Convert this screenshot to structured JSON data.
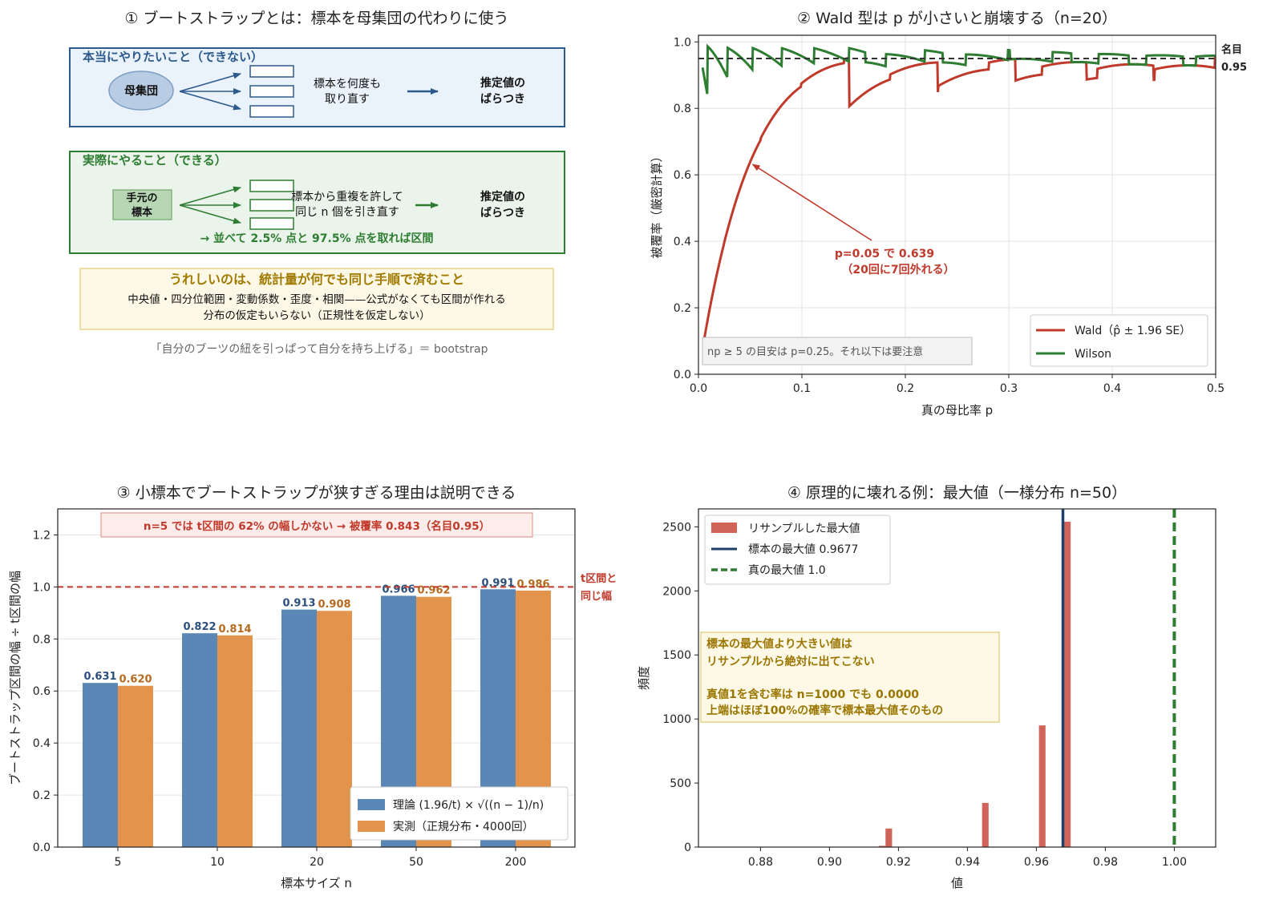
{
  "panel1": {
    "title": "① ブートストラップとは：標本を母集団の代わりに使う",
    "box1": {
      "heading": "本当にやりたいこと（できない）",
      "source": "母集団",
      "middle": [
        "標本を何度も",
        "取り直す"
      ],
      "result": [
        "推定値の",
        "ばらつき"
      ]
    },
    "box2": {
      "heading": "実際にやること（できる）",
      "source": [
        "手元の",
        "標本"
      ],
      "middle": [
        "標本から重複を許して",
        "同じ n 個を引き直す"
      ],
      "result": [
        "推定値の",
        "ばらつき"
      ],
      "footer": "→ 並べて 2.5% 点と 97.5% 点を取れば区間"
    },
    "box3": {
      "heading": "うれしいのは、統計量が何でも同じ手順で済むこと",
      "line1": "中央値・四分位範囲・変動係数・歪度・相関——公式がなくても区間が作れる",
      "line2": "分布の仮定もいらない（正規性を仮定しない）"
    },
    "caption": "「自分のブーツの紐を引っぱって自分を持ち上げる」＝ bootstrap",
    "colors": {
      "blue": "#2c5a8c",
      "blue_fill": "#eaf2fb",
      "green": "#2e7d32",
      "green_fill": "#eaf4ea",
      "gold": "#a07a00",
      "gold_fill": "#fdf9e6"
    }
  },
  "chart_data": [
    {
      "id": "panel2",
      "type": "line",
      "title": "② Wald 型は p が小さいと崩壊する（n=20）",
      "xlabel": "真の母比率 p",
      "ylabel": "被覆率（厳密計算）",
      "xlim": [
        0,
        0.5
      ],
      "ylim": [
        0,
        1.02
      ],
      "xticks": [
        "0.0",
        "0.1",
        "0.2",
        "0.3",
        "0.4",
        "0.5"
      ],
      "yticks": [
        "0.0",
        "0.2",
        "0.4",
        "0.6",
        "0.8",
        "1.0"
      ],
      "n": 20,
      "z": 1.96,
      "series": [
        {
          "name": "Wald（p̂ ± 1.96 SE）",
          "color": "#c0392b",
          "method": "wald"
        },
        {
          "name": "Wilson",
          "color": "#2e7d32",
          "method": "wilson"
        }
      ],
      "reference_line": {
        "y": 0.95,
        "label": [
          "名目",
          "0.95"
        ]
      },
      "annotation": {
        "x": 0.05,
        "y": 0.639,
        "text": [
          "p=0.05 で 0.639",
          "（20回に7回外れる）"
        ]
      },
      "note": "np ≥ 5 の目安は p=0.25。それ以下は要注意",
      "grid": true,
      "legend": "bottom-right"
    },
    {
      "id": "panel3",
      "type": "bar",
      "title": "③ 小標本でブートストラップが狭すぎる理由は説明できる",
      "xlabel": "標本サイズ n",
      "ylabel": "ブートストラップ区間の幅 ÷ t区間の幅",
      "categories": [
        "5",
        "10",
        "20",
        "50",
        "200"
      ],
      "ylim": [
        0,
        1.3
      ],
      "yticks": [
        "0.0",
        "0.2",
        "0.4",
        "0.6",
        "0.8",
        "1.0",
        "1.2"
      ],
      "series": [
        {
          "name": "理論 (1.96/t) × √((n − 1)/n)",
          "color": "#5a87b5",
          "label_color": "#2c4f7c",
          "values": [
            0.631,
            0.822,
            0.913,
            0.966,
            0.991
          ],
          "labels": [
            "0.631",
            "0.822",
            "0.913",
            "0.966",
            "0.991"
          ]
        },
        {
          "name": "実測（正規分布・4000回）",
          "color": "#e2944d",
          "label_color": "#b56a1f",
          "values": [
            0.62,
            0.814,
            0.908,
            0.962,
            0.986
          ],
          "labels": [
            "0.620",
            "0.814",
            "0.908",
            "0.962",
            "0.986"
          ]
        }
      ],
      "reference_line": {
        "y": 1.0,
        "label": [
          "t区間と",
          "同じ幅"
        ]
      },
      "banner": "n=5 では t区間の 62% の幅しかない → 被覆率 0.843（名目0.95）",
      "grid": true,
      "legend": "bottom-right"
    },
    {
      "id": "panel4",
      "type": "bar",
      "title": "④ 原理的に壊れる例：最大値（一様分布 n=50）",
      "xlabel": "値",
      "ylabel": "頻度",
      "xlim": [
        0.862,
        1.012
      ],
      "ylim": [
        0,
        2640
      ],
      "xticks": [
        "0.88",
        "0.90",
        "0.92",
        "0.94",
        "0.96",
        "0.98",
        "1.00"
      ],
      "yticks": [
        "0",
        "500",
        "1000",
        "1500",
        "2000",
        "2500"
      ],
      "bars": [
        {
          "x": 0.9152,
          "value": 10
        },
        {
          "x": 0.9172,
          "value": 145
        },
        {
          "x": 0.9452,
          "value": 345
        },
        {
          "x": 0.9617,
          "value": 950
        },
        {
          "x": 0.969,
          "value": 2540
        }
      ],
      "bin_width": 0.0019,
      "lines": [
        {
          "name": "標本の最大値 0.9677",
          "x": 0.9677,
          "color": "#1f3f68"
        },
        {
          "name": "真の最大値 1.0",
          "x": 1.0,
          "color": "#2e7d32"
        }
      ],
      "hist_name": "リサンプルした最大値",
      "hist_color": "#d0645b",
      "note": [
        "標本の最大値より大きい値は",
        "リサンプルから絶対に出てこない",
        "",
        "真値1を含む率は n=1000 でも 0.0000",
        "上端はほぼ100%の確率で標本最大値そのもの"
      ],
      "legend": "top-left"
    }
  ]
}
